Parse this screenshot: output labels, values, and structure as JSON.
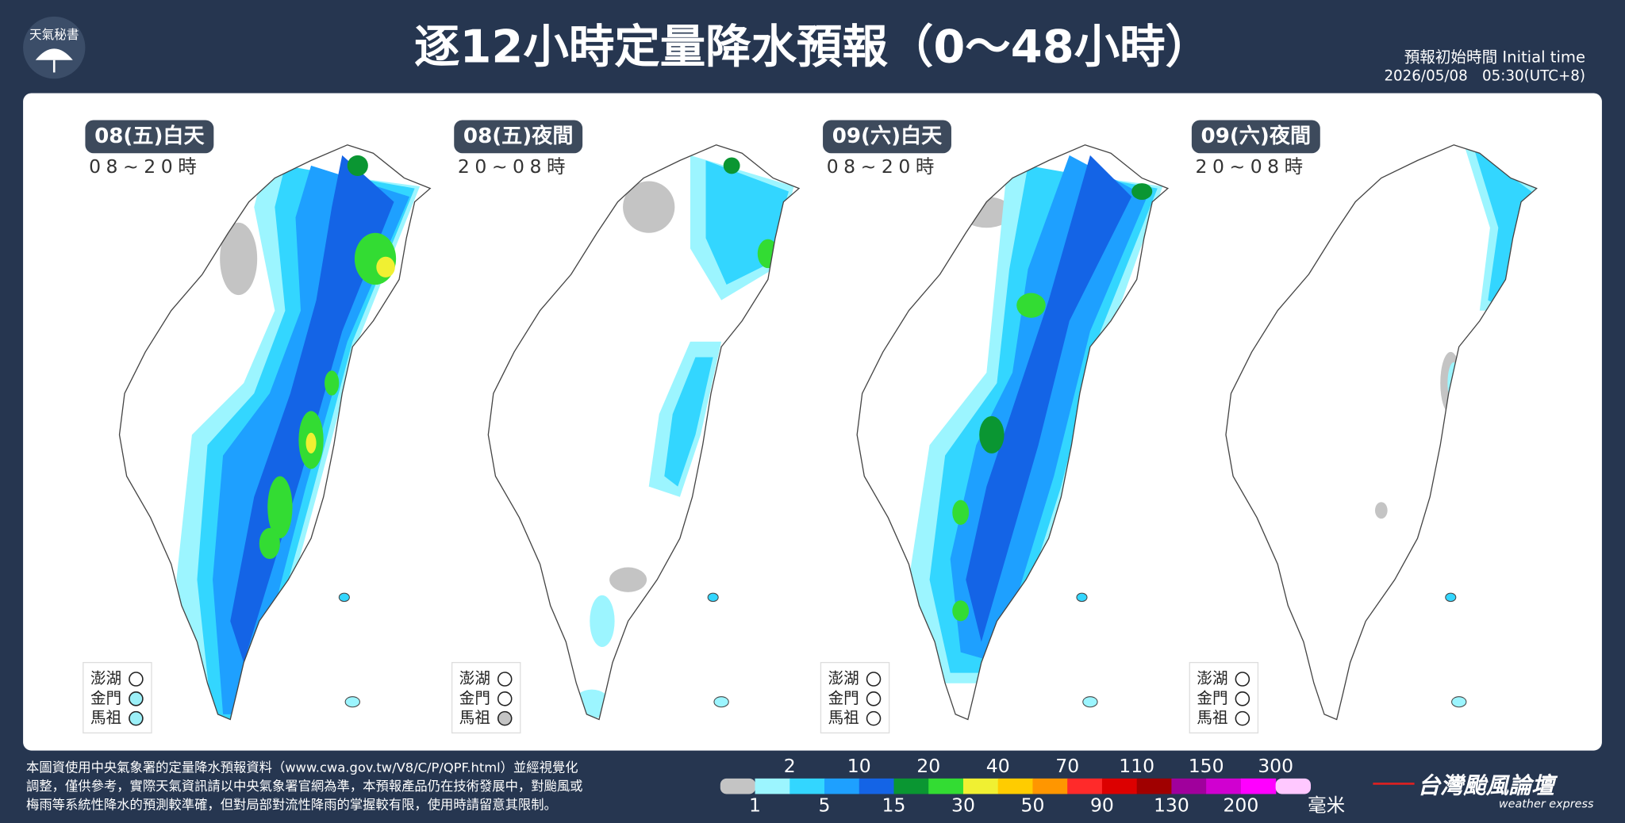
{
  "header": {
    "logo_text": "天氣秘書",
    "title": "逐12小時定量降水預報（0～48小時）",
    "initial_time_label": "預報初始時間 Initial time",
    "initial_time": "2026/05/08　05:30(UTC+8)"
  },
  "panels": [
    {
      "title": "08(五)白天",
      "hours": "08~20時",
      "islands": [
        {
          "name": "澎湖",
          "color": "#ffffff"
        },
        {
          "name": "金門",
          "color": "#9cf0f8"
        },
        {
          "name": "馬祖",
          "color": "#9cf0f8"
        }
      ]
    },
    {
      "title": "08(五)夜間",
      "hours": "20~08時",
      "islands": [
        {
          "name": "澎湖",
          "color": "#ffffff"
        },
        {
          "name": "金門",
          "color": "#ffffff"
        },
        {
          "name": "馬祖",
          "color": "#c4c4c4"
        }
      ]
    },
    {
      "title": "09(六)白天",
      "hours": "08~20時",
      "islands": [
        {
          "name": "澎湖",
          "color": "#ffffff"
        },
        {
          "name": "金門",
          "color": "#ffffff"
        },
        {
          "name": "馬祖",
          "color": "#ffffff"
        }
      ]
    },
    {
      "title": "09(六)夜間",
      "hours": "20~08時",
      "islands": [
        {
          "name": "澎湖",
          "color": "#ffffff"
        },
        {
          "name": "金門",
          "color": "#ffffff"
        },
        {
          "name": "馬祖",
          "color": "#ffffff"
        }
      ]
    }
  ],
  "legend": {
    "boundaries": [
      1,
      2,
      5,
      10,
      15,
      20,
      30,
      40,
      50,
      70,
      90,
      110,
      130,
      150,
      200,
      300
    ],
    "colors": [
      "#c4c4c4",
      "#9cf5ff",
      "#33d6ff",
      "#1ea0ff",
      "#1464e6",
      "#0a9632",
      "#33dc33",
      "#f0f032",
      "#ffcc00",
      "#ff9600",
      "#ff2a2a",
      "#dc0000",
      "#a00000",
      "#a0009c",
      "#d000d0",
      "#ff00ff",
      "#ffc8ff"
    ],
    "unit": "毫米"
  },
  "footer": {
    "lines": [
      "本圖資使用中央氣象署的定量降水預報資料（www.cwa.gov.tw/V8/C/P/QPF.html）並經視覺化",
      "調整，僅供參考，實際天氣資訊請以中央氣象署官網為準，本預報產品仍在技術發展中，對颱風或",
      "梅雨等系統性降水的預測較準確，但對局部對流性降雨的掌握較有限，使用時請留意其限制。"
    ]
  },
  "brand": {
    "name": "台灣颱風論壇",
    "tagline": "weather express"
  }
}
